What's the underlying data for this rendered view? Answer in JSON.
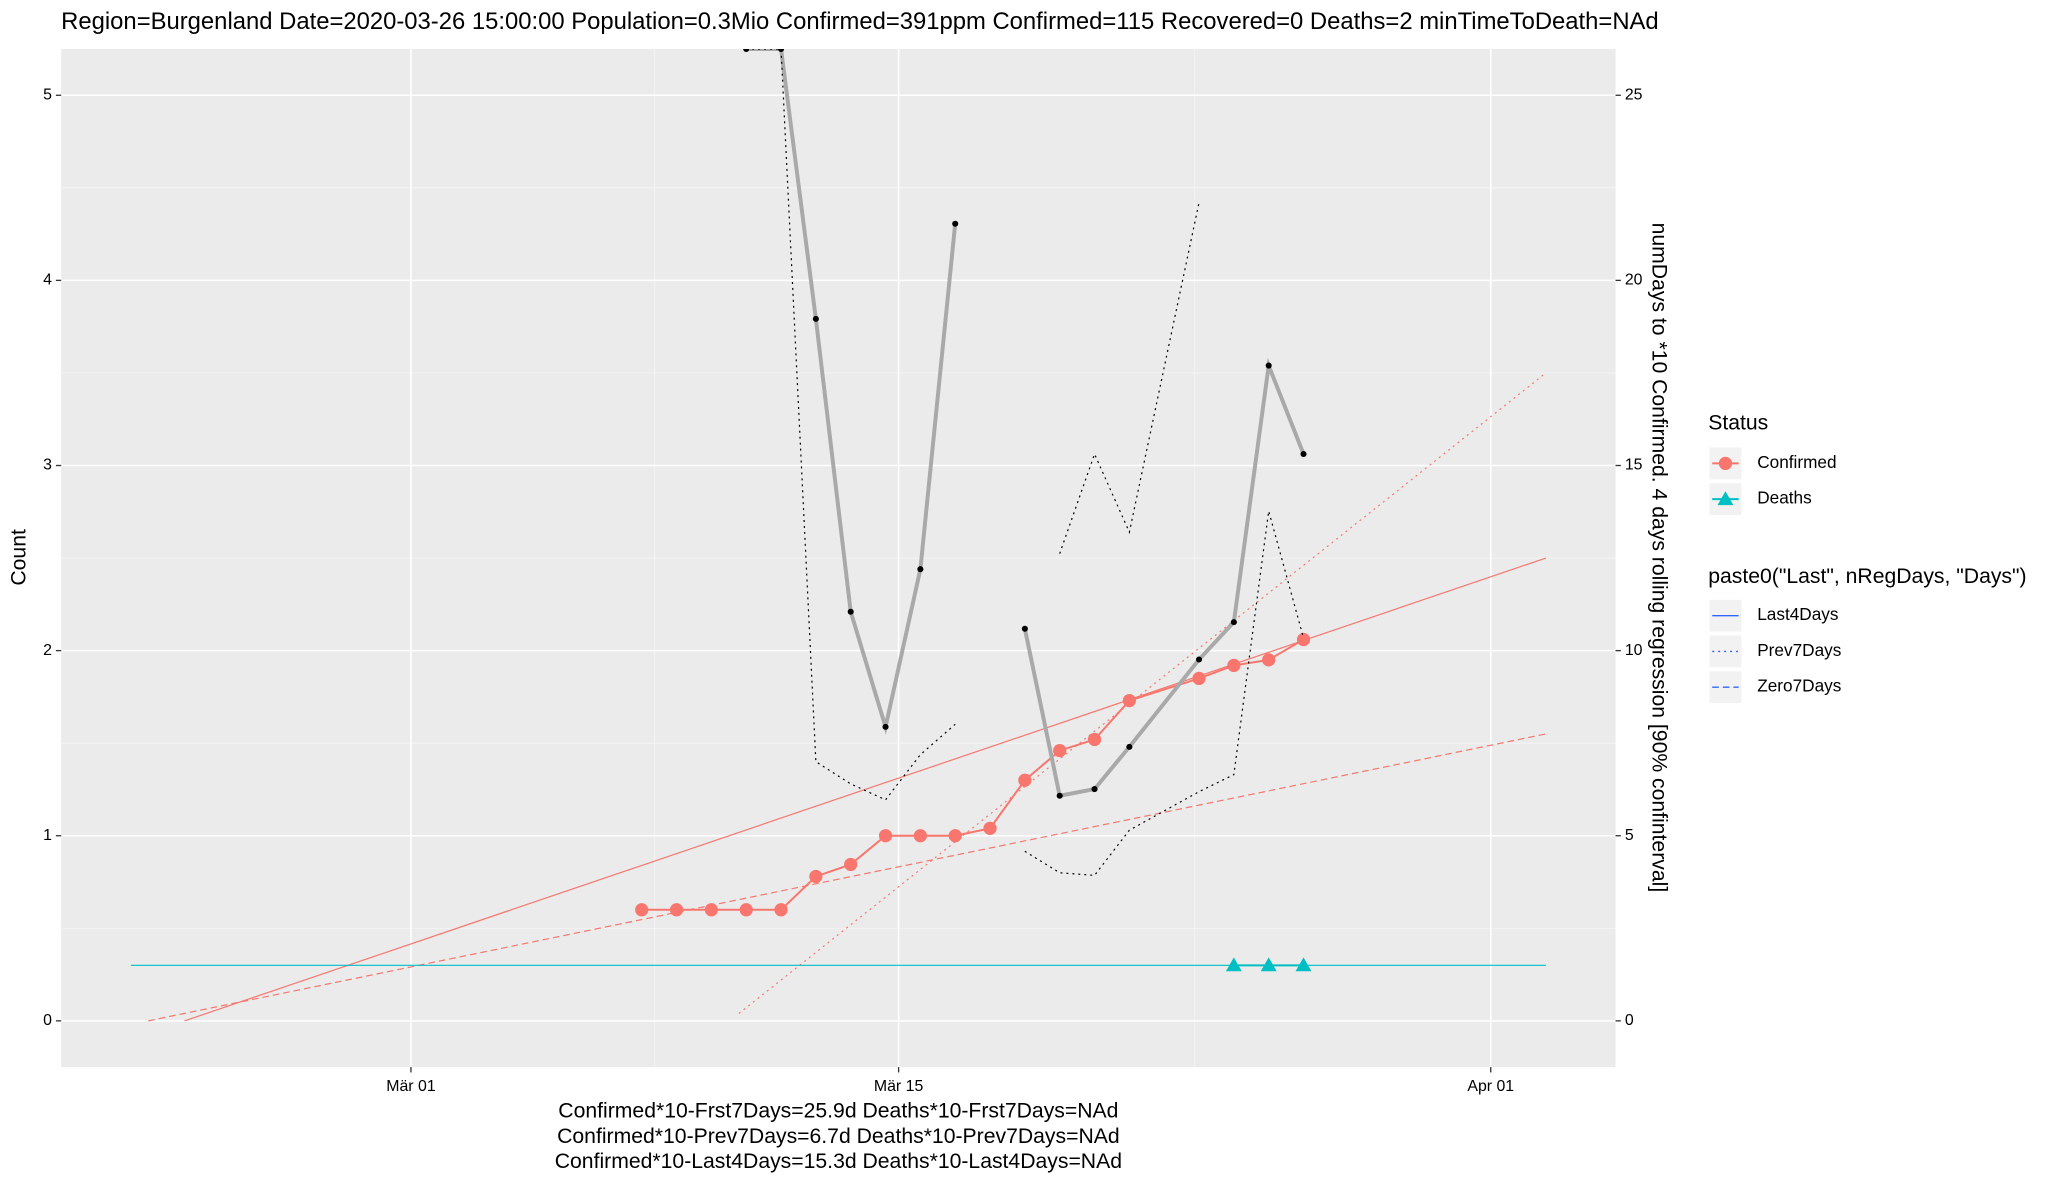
{
  "chart_data": {
    "type": "line",
    "title": "Region=Burgenland Date=2020-03-26 15:00:00  Population=0.3Mio Confirmed=391ppm  Confirmed=115  Recovered=0 Deaths=2  minTimeToDeath=NAd",
    "caption": [
      "Confirmed*10-Frst7Days=25.9d  Deaths*10-Frst7Days=NAd",
      "Confirmed*10-Prev7Days=6.7d  Deaths*10-Prev7Days=NAd",
      "Confirmed*10-Last4Days=15.3d  Deaths*10-Last4Days=NAd"
    ],
    "ylabel": "Count",
    "y2label": "numDays to *10 Confirmed. 4 days rolling regression [90% confinterval]",
    "xlim": [
      "2020-02-19 23:00",
      "2020-04-04 14:00"
    ],
    "xticks": [
      {
        "value": "2020-03-01 00:00",
        "label": "Mär 01"
      },
      {
        "value": "2020-03-15 00:00",
        "label": "Mär 15"
      },
      {
        "value": "2020-04-01 00:00",
        "label": "Apr 01"
      }
    ],
    "ylim": [
      -0.25,
      5.25
    ],
    "yticks": [
      0,
      1,
      2,
      3,
      4,
      5
    ],
    "y2lim": [
      -1.25,
      26.25
    ],
    "y2ticks": [
      0,
      5,
      10,
      15,
      20,
      25
    ],
    "grid": true,
    "x": [
      "2020-03-07 15:00",
      "2020-03-08 15:00",
      "2020-03-09 15:00",
      "2020-03-10 15:00",
      "2020-03-11 15:00",
      "2020-03-12 15:00",
      "2020-03-13 15:00",
      "2020-03-14 15:00",
      "2020-03-15 15:00",
      "2020-03-16 15:00",
      "2020-03-17 15:00",
      "2020-03-18 15:00",
      "2020-03-19 15:00",
      "2020-03-20 15:00",
      "2020-03-21 15:00",
      "2020-03-23 15:00",
      "2020-03-24 15:00",
      "2020-03-25 15:00",
      "2020-03-26 15:00"
    ],
    "series": [
      {
        "name": "Confirmed",
        "color": "#f8766d",
        "marker": "circle",
        "values": [
          0.6,
          0.6,
          0.6,
          0.6,
          0.6,
          0.78,
          0.845,
          1.0,
          1.0,
          1.0,
          1.04,
          1.3,
          1.46,
          1.52,
          1.73,
          1.85,
          1.92,
          1.95,
          2.06
        ]
      },
      {
        "name": "Deaths",
        "color": "#00bfc4",
        "marker": "triangle",
        "values": [
          null,
          null,
          null,
          null,
          null,
          null,
          null,
          null,
          null,
          null,
          null,
          null,
          null,
          null,
          null,
          null,
          0.3,
          0.3,
          0.3
        ]
      },
      {
        "color": "#a9a9a9",
        "marker": "dot",
        "axis": "y2",
        "values": [
          null,
          null,
          null,
          26.25,
          26.25,
          18.96,
          11.05,
          7.94,
          12.2,
          21.53,
          null,
          10.59,
          6.08,
          6.26,
          7.4,
          9.76,
          10.77,
          17.7,
          15.31
        ]
      },
      {
        "color": "#000000",
        "linetype": "dotted",
        "axis": "y2",
        "values": [
          null,
          null,
          null,
          26.25,
          26.25,
          7.0,
          6.4,
          5.97,
          7.19,
          8.01,
          null,
          4.58,
          4.0,
          3.93,
          5.15,
          6.19,
          6.65,
          13.77,
          10.34
        ]
      },
      {
        "color": "#000000",
        "linetype": "dotted",
        "axis": "y2",
        "values": [
          null,
          null,
          null,
          null,
          null,
          null,
          null,
          null,
          null,
          null,
          null,
          null,
          12.62,
          15.31,
          13.2,
          22.1,
          null,
          null,
          null
        ]
      }
    ],
    "regression": [
      {
        "color": "#f8766d",
        "linetype": "solid",
        "x": [
          "2020-02-23 12:00",
          "2020-04-02 14:00"
        ],
        "values": [
          0,
          2.5
        ]
      },
      {
        "color": "#f8766d",
        "linetype": "dotted",
        "x": [
          "2020-03-10 10:00",
          "2020-04-02 14:00"
        ],
        "values": [
          0.04,
          3.5
        ]
      },
      {
        "color": "#f8766d",
        "linetype": "dashed",
        "x": [
          "2020-02-22 11:00",
          "2020-04-02 14:00"
        ],
        "values": [
          0,
          1.55
        ]
      },
      {
        "color": "#00bfc4",
        "linetype": "solid",
        "x": [
          "2020-02-21 23:00",
          "2020-04-02 14:00"
        ],
        "values": [
          0.3,
          0.3
        ]
      }
    ],
    "legend_title": "Status",
    "linetype_legend": {
      "title": "paste0(\"Last\", nRegDays, \"Days\")",
      "color": "#3366ff",
      "items": [
        "Last4Days",
        "Prev7Days",
        "Zero7Days"
      ],
      "linetypes": [
        "solid",
        "dotted",
        "dashed"
      ]
    }
  }
}
